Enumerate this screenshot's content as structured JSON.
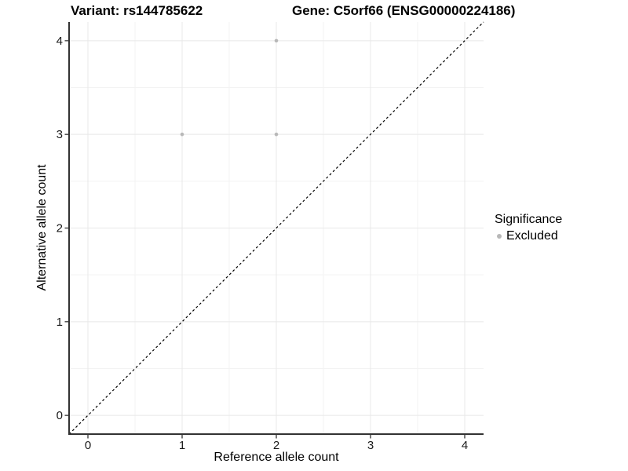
{
  "chart_data": {
    "type": "scatter",
    "title_left": "Variant: rs144785622",
    "title_right": "Gene: C5orf66 (ENSG00000224186)",
    "xlabel": "Reference allele count",
    "ylabel": "Alternative allele count",
    "xlim": [
      -0.2,
      4.2
    ],
    "ylim": [
      -0.2,
      4.2
    ],
    "x_ticks": [
      0,
      1,
      2,
      3,
      4
    ],
    "y_ticks": [
      0,
      1,
      2,
      3,
      4
    ],
    "x_minor_breaks": [
      0.5,
      1.5,
      2.5,
      3.5
    ],
    "y_minor_breaks": [
      0.5,
      1.5,
      2.5,
      3.5
    ],
    "grid": true,
    "identity_line": {
      "type": "dashed",
      "slope": 1,
      "intercept": 0
    },
    "series": [
      {
        "name": "Excluded",
        "color": "#b8b8b8",
        "points": [
          [
            1,
            3
          ],
          [
            2,
            3
          ],
          [
            2,
            4
          ]
        ]
      }
    ],
    "legend": {
      "title": "Significance",
      "position": "right",
      "items": [
        {
          "label": "Excluded",
          "color": "#b8b8b8"
        }
      ]
    },
    "colors": {
      "grid_major": "#e8e8e8",
      "grid_minor": "#f3f3f3",
      "axis_line": "#333333",
      "tick_label": "#1a1a1a",
      "identity_line": "#000000",
      "background": "#ffffff"
    }
  }
}
